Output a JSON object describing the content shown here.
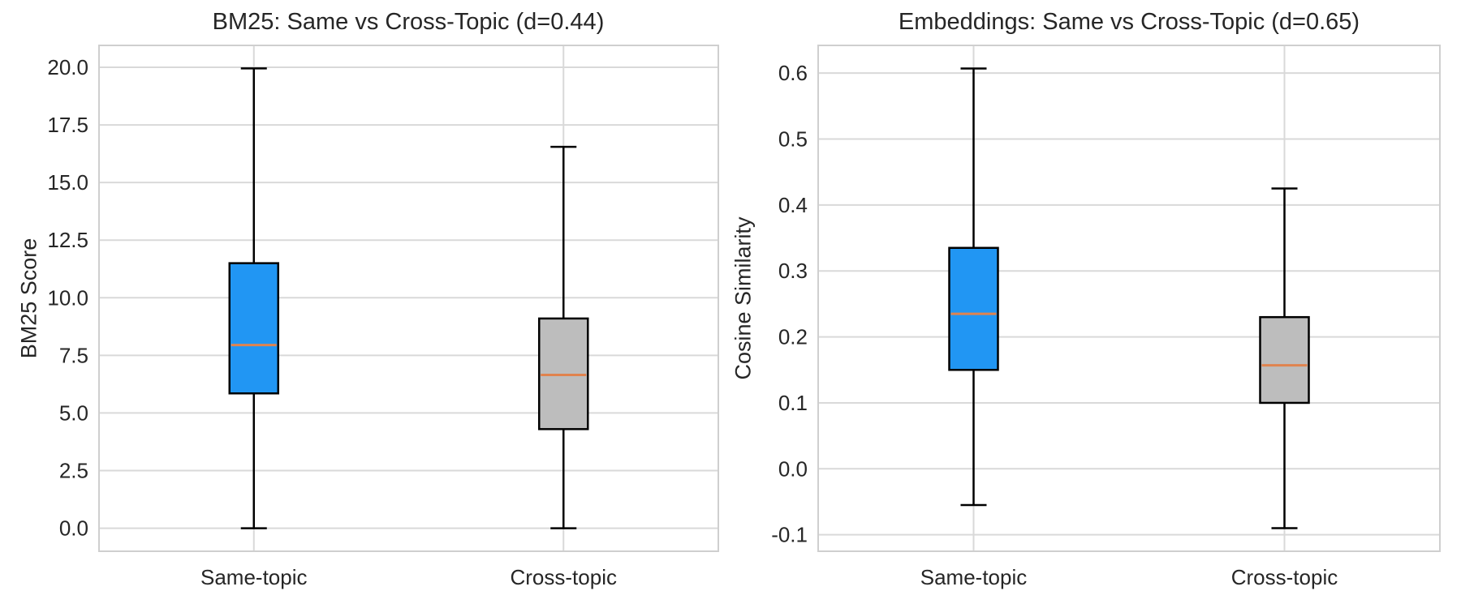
{
  "figure": {
    "background": "#ffffff",
    "text_color": "#262626",
    "grid_color": "#d9d9d9",
    "spine_color": "#cfcfcf"
  },
  "chart_data": [
    {
      "type": "boxplot",
      "title": "BM25: Same vs Cross-Topic (d=0.44)",
      "ylabel": "BM25 Score",
      "xlabel": "",
      "categories": [
        "Same-topic",
        "Cross-topic"
      ],
      "yticks": [
        0.0,
        2.5,
        5.0,
        7.5,
        10.0,
        12.5,
        15.0,
        17.5,
        20.0
      ],
      "ytick_labels": [
        "0.0",
        "2.5",
        "5.0",
        "7.5",
        "10.0",
        "12.5",
        "15.0",
        "17.5",
        "20.0"
      ],
      "ylim": [
        -1.0,
        20.95
      ],
      "grid": true,
      "legend": "none",
      "edge_color": "#000000",
      "median_color": "#e0834e",
      "boxes": [
        {
          "category": "Same-topic",
          "whisker_low": 0.0,
          "q1": 5.85,
          "median": 7.95,
          "q3": 11.5,
          "whisker_high": 19.95,
          "fill": "#2196f3"
        },
        {
          "category": "Cross-topic",
          "whisker_low": 0.0,
          "q1": 4.3,
          "median": 6.65,
          "q3": 9.1,
          "whisker_high": 16.55,
          "fill": "#bdbdbd"
        }
      ]
    },
    {
      "type": "boxplot",
      "title": "Embeddings: Same vs Cross-Topic (d=0.65)",
      "ylabel": "Cosine Similarity",
      "xlabel": "",
      "categories": [
        "Same-topic",
        "Cross-topic"
      ],
      "yticks": [
        -0.1,
        0.0,
        0.1,
        0.2,
        0.3,
        0.4,
        0.5,
        0.6
      ],
      "ytick_labels": [
        "-0.1",
        "0.0",
        "0.1",
        "0.2",
        "0.3",
        "0.4",
        "0.5",
        "0.6"
      ],
      "ylim": [
        -0.125,
        0.642
      ],
      "grid": true,
      "legend": "none",
      "edge_color": "#000000",
      "median_color": "#e0834e",
      "boxes": [
        {
          "category": "Same-topic",
          "whisker_low": -0.055,
          "q1": 0.15,
          "median": 0.235,
          "q3": 0.335,
          "whisker_high": 0.607,
          "fill": "#2196f3"
        },
        {
          "category": "Cross-topic",
          "whisker_low": -0.09,
          "q1": 0.1,
          "median": 0.157,
          "q3": 0.23,
          "whisker_high": 0.425,
          "fill": "#bdbdbd"
        }
      ]
    }
  ]
}
